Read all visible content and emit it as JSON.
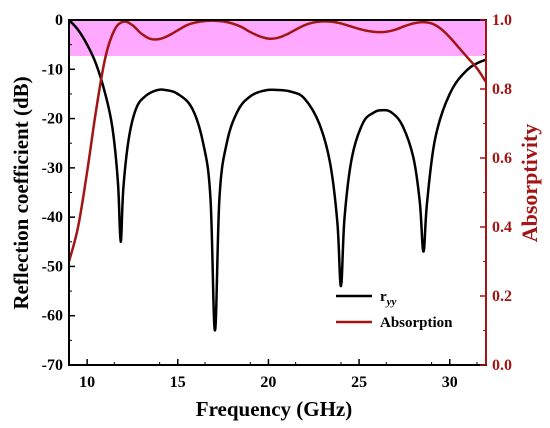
{
  "chart_data": {
    "type": "line",
    "xlabel": "Frequency (GHz)",
    "ylabel": "Reflection coefficient (dB)",
    "y2label": "Absorptivity",
    "xlim": [
      9,
      32
    ],
    "ylim": [
      -70,
      0
    ],
    "y2lim": [
      0,
      1.0
    ],
    "x_ticks": [
      "10",
      "15",
      "20",
      "25",
      "30"
    ],
    "y_ticks": [
      "0",
      "-10",
      "-20",
      "-30",
      "-40",
      "-50",
      "-60",
      "-70"
    ],
    "y2_ticks": [
      "0.0",
      "0.2",
      "0.4",
      "0.6",
      "0.8",
      "1.0"
    ],
    "legend_position": "bottom-right",
    "shaded_band": {
      "axis": "y",
      "from": -7.3,
      "to": 0,
      "color": "#ff99ff"
    },
    "series": [
      {
        "name": "r_yy",
        "legend_label": "r",
        "legend_subscript": "yy",
        "axis": "left",
        "color": "#000000",
        "x": [
          9.0,
          9.5,
          10.0,
          10.5,
          11.0,
          11.4,
          11.7,
          11.85,
          12.0,
          12.3,
          12.7,
          13.2,
          13.8,
          14.3,
          15.0,
          15.8,
          16.4,
          16.8,
          17.05,
          17.3,
          17.7,
          18.3,
          19.0,
          19.8,
          20.5,
          21.3,
          22.0,
          22.8,
          23.4,
          23.8,
          24.0,
          24.2,
          24.6,
          25.2,
          25.8,
          26.3,
          26.8,
          27.4,
          28.0,
          28.35,
          28.55,
          28.75,
          29.2,
          30.0,
          31.0,
          32.0
        ],
        "y": [
          0,
          -2,
          -5,
          -9,
          -15,
          -22,
          -33,
          -45,
          -34,
          -24,
          -18,
          -15.5,
          -14.3,
          -14.2,
          -15,
          -18,
          -25,
          -36,
          -63,
          -36,
          -25,
          -18.5,
          -15.5,
          -14.3,
          -14.2,
          -14.6,
          -16,
          -21,
          -29,
          -41,
          -54,
          -40,
          -28,
          -21,
          -18.8,
          -18.3,
          -18.8,
          -21.5,
          -28,
          -37,
          -47,
          -37,
          -24,
          -15,
          -10,
          -8
        ]
      },
      {
        "name": "Absorption",
        "legend_label": "Absorption",
        "axis": "right",
        "color": "#a31515",
        "x": [
          9.0,
          9.5,
          10.0,
          10.5,
          11.0,
          11.5,
          12.0,
          12.5,
          13.0,
          13.5,
          14.0,
          14.5,
          15.0,
          15.5,
          16.0,
          16.5,
          17.0,
          17.5,
          18.0,
          18.5,
          19.0,
          19.5,
          20.0,
          20.5,
          21.0,
          21.5,
          22.0,
          22.5,
          23.0,
          23.5,
          24.0,
          24.5,
          25.0,
          25.5,
          26.0,
          26.5,
          27.0,
          27.5,
          28.0,
          28.5,
          29.0,
          29.5,
          30.0,
          30.5,
          31.0,
          31.5,
          32.0
        ],
        "y": [
          0.3,
          0.4,
          0.56,
          0.74,
          0.89,
          0.97,
          0.995,
          0.985,
          0.96,
          0.945,
          0.945,
          0.955,
          0.97,
          0.985,
          0.993,
          0.997,
          0.998,
          0.996,
          0.99,
          0.98,
          0.965,
          0.953,
          0.946,
          0.948,
          0.958,
          0.972,
          0.985,
          0.993,
          0.996,
          0.995,
          0.99,
          0.982,
          0.974,
          0.968,
          0.965,
          0.966,
          0.972,
          0.982,
          0.99,
          0.994,
          0.99,
          0.975,
          0.95,
          0.92,
          0.89,
          0.86,
          0.82
        ]
      }
    ]
  }
}
